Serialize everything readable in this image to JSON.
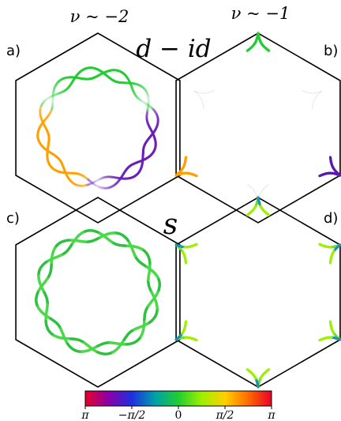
{
  "figure": {
    "column_headers": [
      "ν ~ −2",
      "ν ~ −1"
    ],
    "row_symbols": [
      "d − id",
      "s"
    ],
    "panel_labels": [
      "a)",
      "b)",
      "c)",
      "d)"
    ],
    "colorbar": {
      "ticks": [
        "π",
        "−π/2",
        "0",
        "π/2",
        "π"
      ],
      "colormap": [
        "#e8002a",
        "#8a00a8",
        "#1f2fe0",
        "#00a0a8",
        "#22cc33",
        "#9cf000",
        "#ffd000",
        "#ff6a00",
        "#e8002a"
      ]
    }
  }
}
